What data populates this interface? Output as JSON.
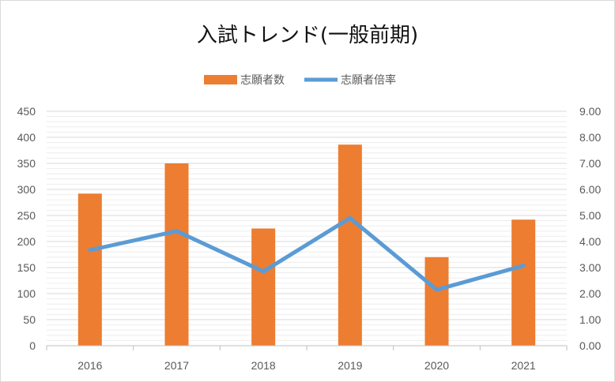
{
  "chart_data": {
    "type": "bar",
    "title": "入試トレンド(一般前期)",
    "categories": [
      "2016",
      "2017",
      "2018",
      "2019",
      "2020",
      "2021"
    ],
    "series": [
      {
        "name": "志願者数",
        "type": "bar",
        "axis": "left",
        "color": "#ed7d31",
        "values": [
          292,
          350,
          225,
          386,
          170,
          242
        ]
      },
      {
        "name": "志願者倍率",
        "type": "line",
        "axis": "right",
        "color": "#5b9bd5",
        "values": [
          3.67,
          4.4,
          2.85,
          4.9,
          2.15,
          3.07
        ]
      }
    ],
    "y_left": {
      "lim": [
        0,
        450
      ],
      "ticks": [
        "0",
        "50",
        "100",
        "150",
        "200",
        "250",
        "300",
        "350",
        "400",
        "450"
      ]
    },
    "y_right": {
      "lim": [
        0,
        9
      ],
      "ticks": [
        "0.00",
        "1.00",
        "2.00",
        "3.00",
        "4.00",
        "5.00",
        "6.00",
        "7.00",
        "8.00",
        "9.00"
      ]
    },
    "legend": {
      "position": "top"
    },
    "grid": true
  }
}
